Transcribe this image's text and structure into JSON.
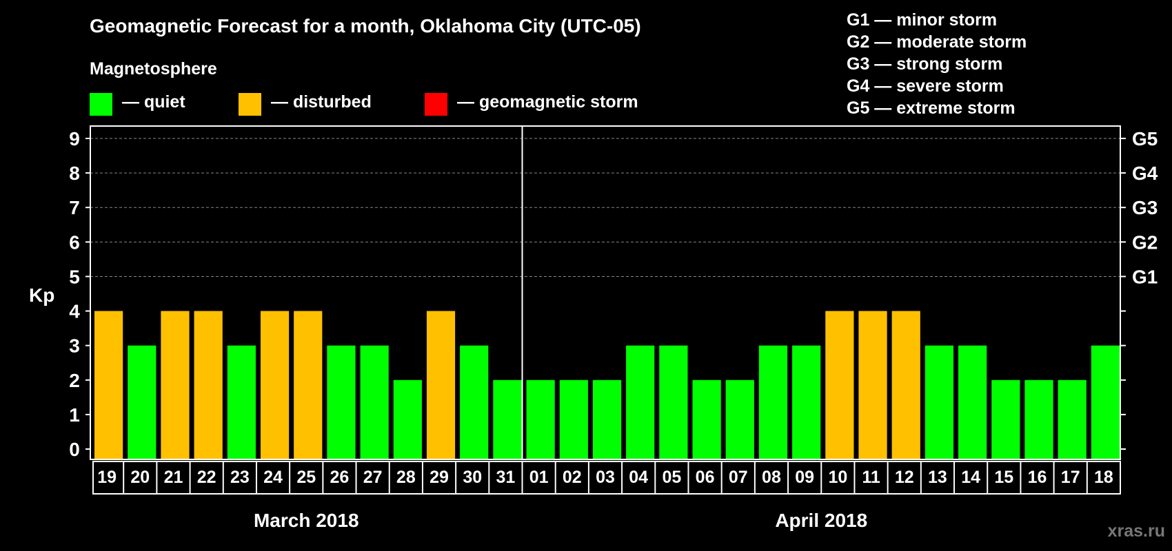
{
  "title": "Geomagnetic Forecast for a month, Oklahoma City (UTC-05)",
  "magnetosphere": {
    "title": "Magnetosphere",
    "legend": [
      {
        "label": "— quiet",
        "color": "#00ff00"
      },
      {
        "label": "— disturbed",
        "color": "#ffc000"
      },
      {
        "label": "— geomagnetic storm",
        "color": "#ff0000"
      }
    ]
  },
  "storm_scale": [
    "G1 — minor storm",
    "G2 — moderate storm",
    "G3 — strong storm",
    "G4 — severe storm",
    "G5 — extreme storm"
  ],
  "watermark": "xras.ru",
  "chart_data": {
    "type": "bar",
    "title": "Geomagnetic Forecast for a month, Oklahoma City (UTC-05)",
    "ylabel": "Kp",
    "ylim": [
      0,
      9
    ],
    "yticks": [
      0,
      1,
      2,
      3,
      4,
      5,
      6,
      7,
      8,
      9
    ],
    "right_axis_labels": [
      {
        "kp": 5,
        "label": "G1"
      },
      {
        "kp": 6,
        "label": "G2"
      },
      {
        "kp": 7,
        "label": "G3"
      },
      {
        "kp": 8,
        "label": "G4"
      },
      {
        "kp": 9,
        "label": "G5"
      }
    ],
    "months": [
      {
        "label": "March 2018",
        "days": 13
      },
      {
        "label": "April 2018",
        "days": 18
      }
    ],
    "categories": [
      "19",
      "20",
      "21",
      "22",
      "23",
      "24",
      "25",
      "26",
      "27",
      "28",
      "29",
      "30",
      "31",
      "01",
      "02",
      "03",
      "04",
      "05",
      "06",
      "07",
      "08",
      "09",
      "10",
      "11",
      "12",
      "13",
      "14",
      "15",
      "16",
      "17",
      "18"
    ],
    "values": [
      4,
      3,
      4,
      4,
      3,
      4,
      4,
      3,
      3,
      2,
      4,
      3,
      2,
      2,
      2,
      2,
      3,
      3,
      2,
      2,
      3,
      3,
      4,
      4,
      4,
      3,
      3,
      2,
      2,
      2,
      3
    ],
    "colors": {
      "quiet": "#00ff00",
      "disturbed": "#ffc000",
      "storm": "#ff0000"
    },
    "thresholds": {
      "disturbed_from": 4,
      "storm_from": 5
    },
    "grid": true
  }
}
